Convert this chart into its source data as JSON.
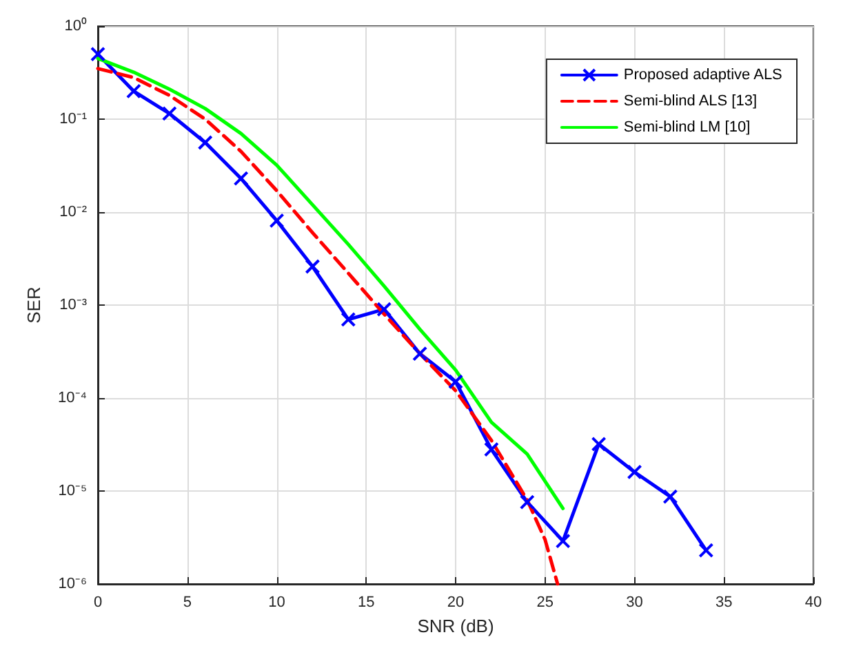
{
  "chart_data": {
    "type": "line",
    "xlabel": "SNR (dB)",
    "ylabel": "SER",
    "log": "y",
    "grid": true,
    "legend": "top right",
    "xlim": [
      0,
      40
    ],
    "xticks": [
      0,
      5,
      10,
      15,
      20,
      25,
      30,
      35,
      40
    ],
    "ylim": [
      1e-06,
      1
    ],
    "yticks": [
      {
        "value": 1e-06,
        "label": "10⁻⁶"
      },
      {
        "value": 1e-05,
        "label": "10⁻⁵"
      },
      {
        "value": 0.0001,
        "label": "10⁻⁴"
      },
      {
        "value": 0.001,
        "label": "10⁻³"
      },
      {
        "value": 0.01,
        "label": "10⁻²"
      },
      {
        "value": 0.1,
        "label": "10⁻¹"
      },
      {
        "value": 1,
        "label": "10⁰"
      }
    ],
    "series": [
      {
        "name": "Proposed adaptive ALS",
        "color": "#0000ff",
        "marker": "cross",
        "line_style": "solid",
        "x": [
          0,
          2,
          4,
          6,
          8,
          10,
          12,
          14,
          16,
          18,
          20,
          22,
          24,
          26,
          28,
          30,
          32,
          34
        ],
        "values": [
          0.5,
          0.2,
          0.115,
          0.056,
          0.023,
          0.0081,
          0.0026,
          0.0007,
          0.0009,
          0.0003,
          0.00015,
          2.8e-05,
          7.6e-06,
          2.9e-06,
          3.2e-05,
          1.6e-05,
          8.7e-06,
          2.3e-06
        ]
      },
      {
        "name": "Semi-blind ALS [13]",
        "color": "#ff0000",
        "marker": "none",
        "line_style": "dashed",
        "x": [
          0,
          2,
          4,
          6,
          8,
          10,
          12,
          14,
          16,
          18,
          20,
          22,
          24,
          25,
          25.7
        ],
        "values": [
          0.35,
          0.28,
          0.18,
          0.1,
          0.045,
          0.017,
          0.006,
          0.0022,
          0.0008,
          0.0003,
          0.00012,
          3.5e-05,
          8e-06,
          3e-06,
          1e-06
        ]
      },
      {
        "name": "Semi-blind LM [10]",
        "color": "#00ff00",
        "marker": "none",
        "line_style": "solid",
        "x": [
          0,
          2,
          4,
          6,
          8,
          10,
          12,
          14,
          16,
          18,
          20,
          22,
          24,
          26
        ],
        "values": [
          0.45,
          0.32,
          0.21,
          0.13,
          0.07,
          0.032,
          0.012,
          0.0045,
          0.0016,
          0.00055,
          0.0002,
          5.5e-05,
          2.5e-05,
          6.5e-06
        ]
      }
    ]
  }
}
